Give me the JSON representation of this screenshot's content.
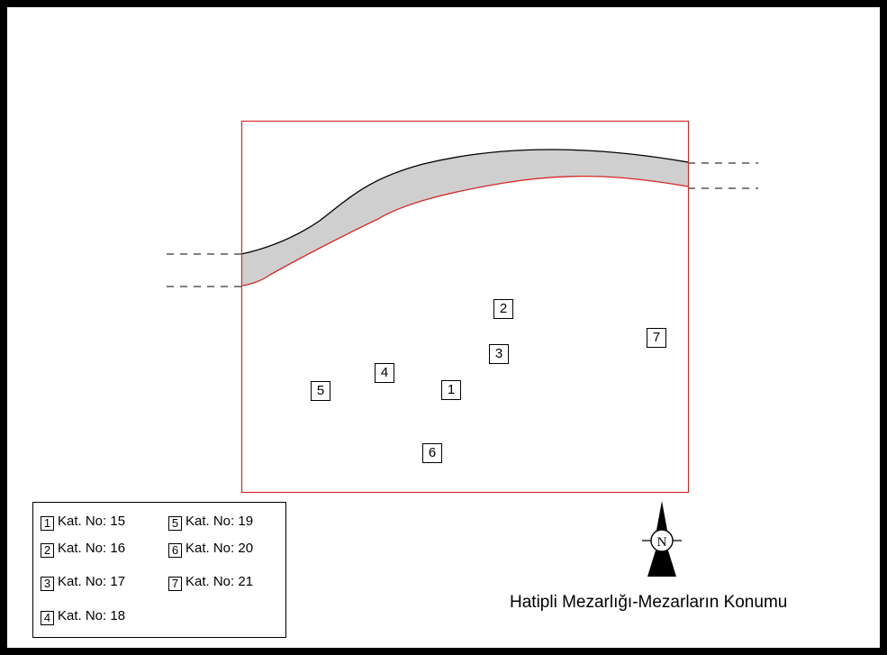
{
  "map": {
    "title": "Hatipli Mezarlığı-Mezarların Konumu",
    "boundary_color": "#d62828",
    "road_fill": "#cfcfcf",
    "north_label": "N"
  },
  "markers": [
    {
      "id": "1"
    },
    {
      "id": "2"
    },
    {
      "id": "3"
    },
    {
      "id": "4"
    },
    {
      "id": "5"
    },
    {
      "id": "6"
    },
    {
      "id": "7"
    }
  ],
  "legend": {
    "items": [
      {
        "num": "1",
        "label": "Kat. No: 15"
      },
      {
        "num": "2",
        "label": "Kat. No: 16"
      },
      {
        "num": "3",
        "label": "Kat. No: 17"
      },
      {
        "num": "4",
        "label": "Kat. No: 18"
      },
      {
        "num": "5",
        "label": "Kat. No: 19"
      },
      {
        "num": "6",
        "label": "Kat. No: 20"
      },
      {
        "num": "7",
        "label": "Kat. No: 21"
      }
    ]
  }
}
